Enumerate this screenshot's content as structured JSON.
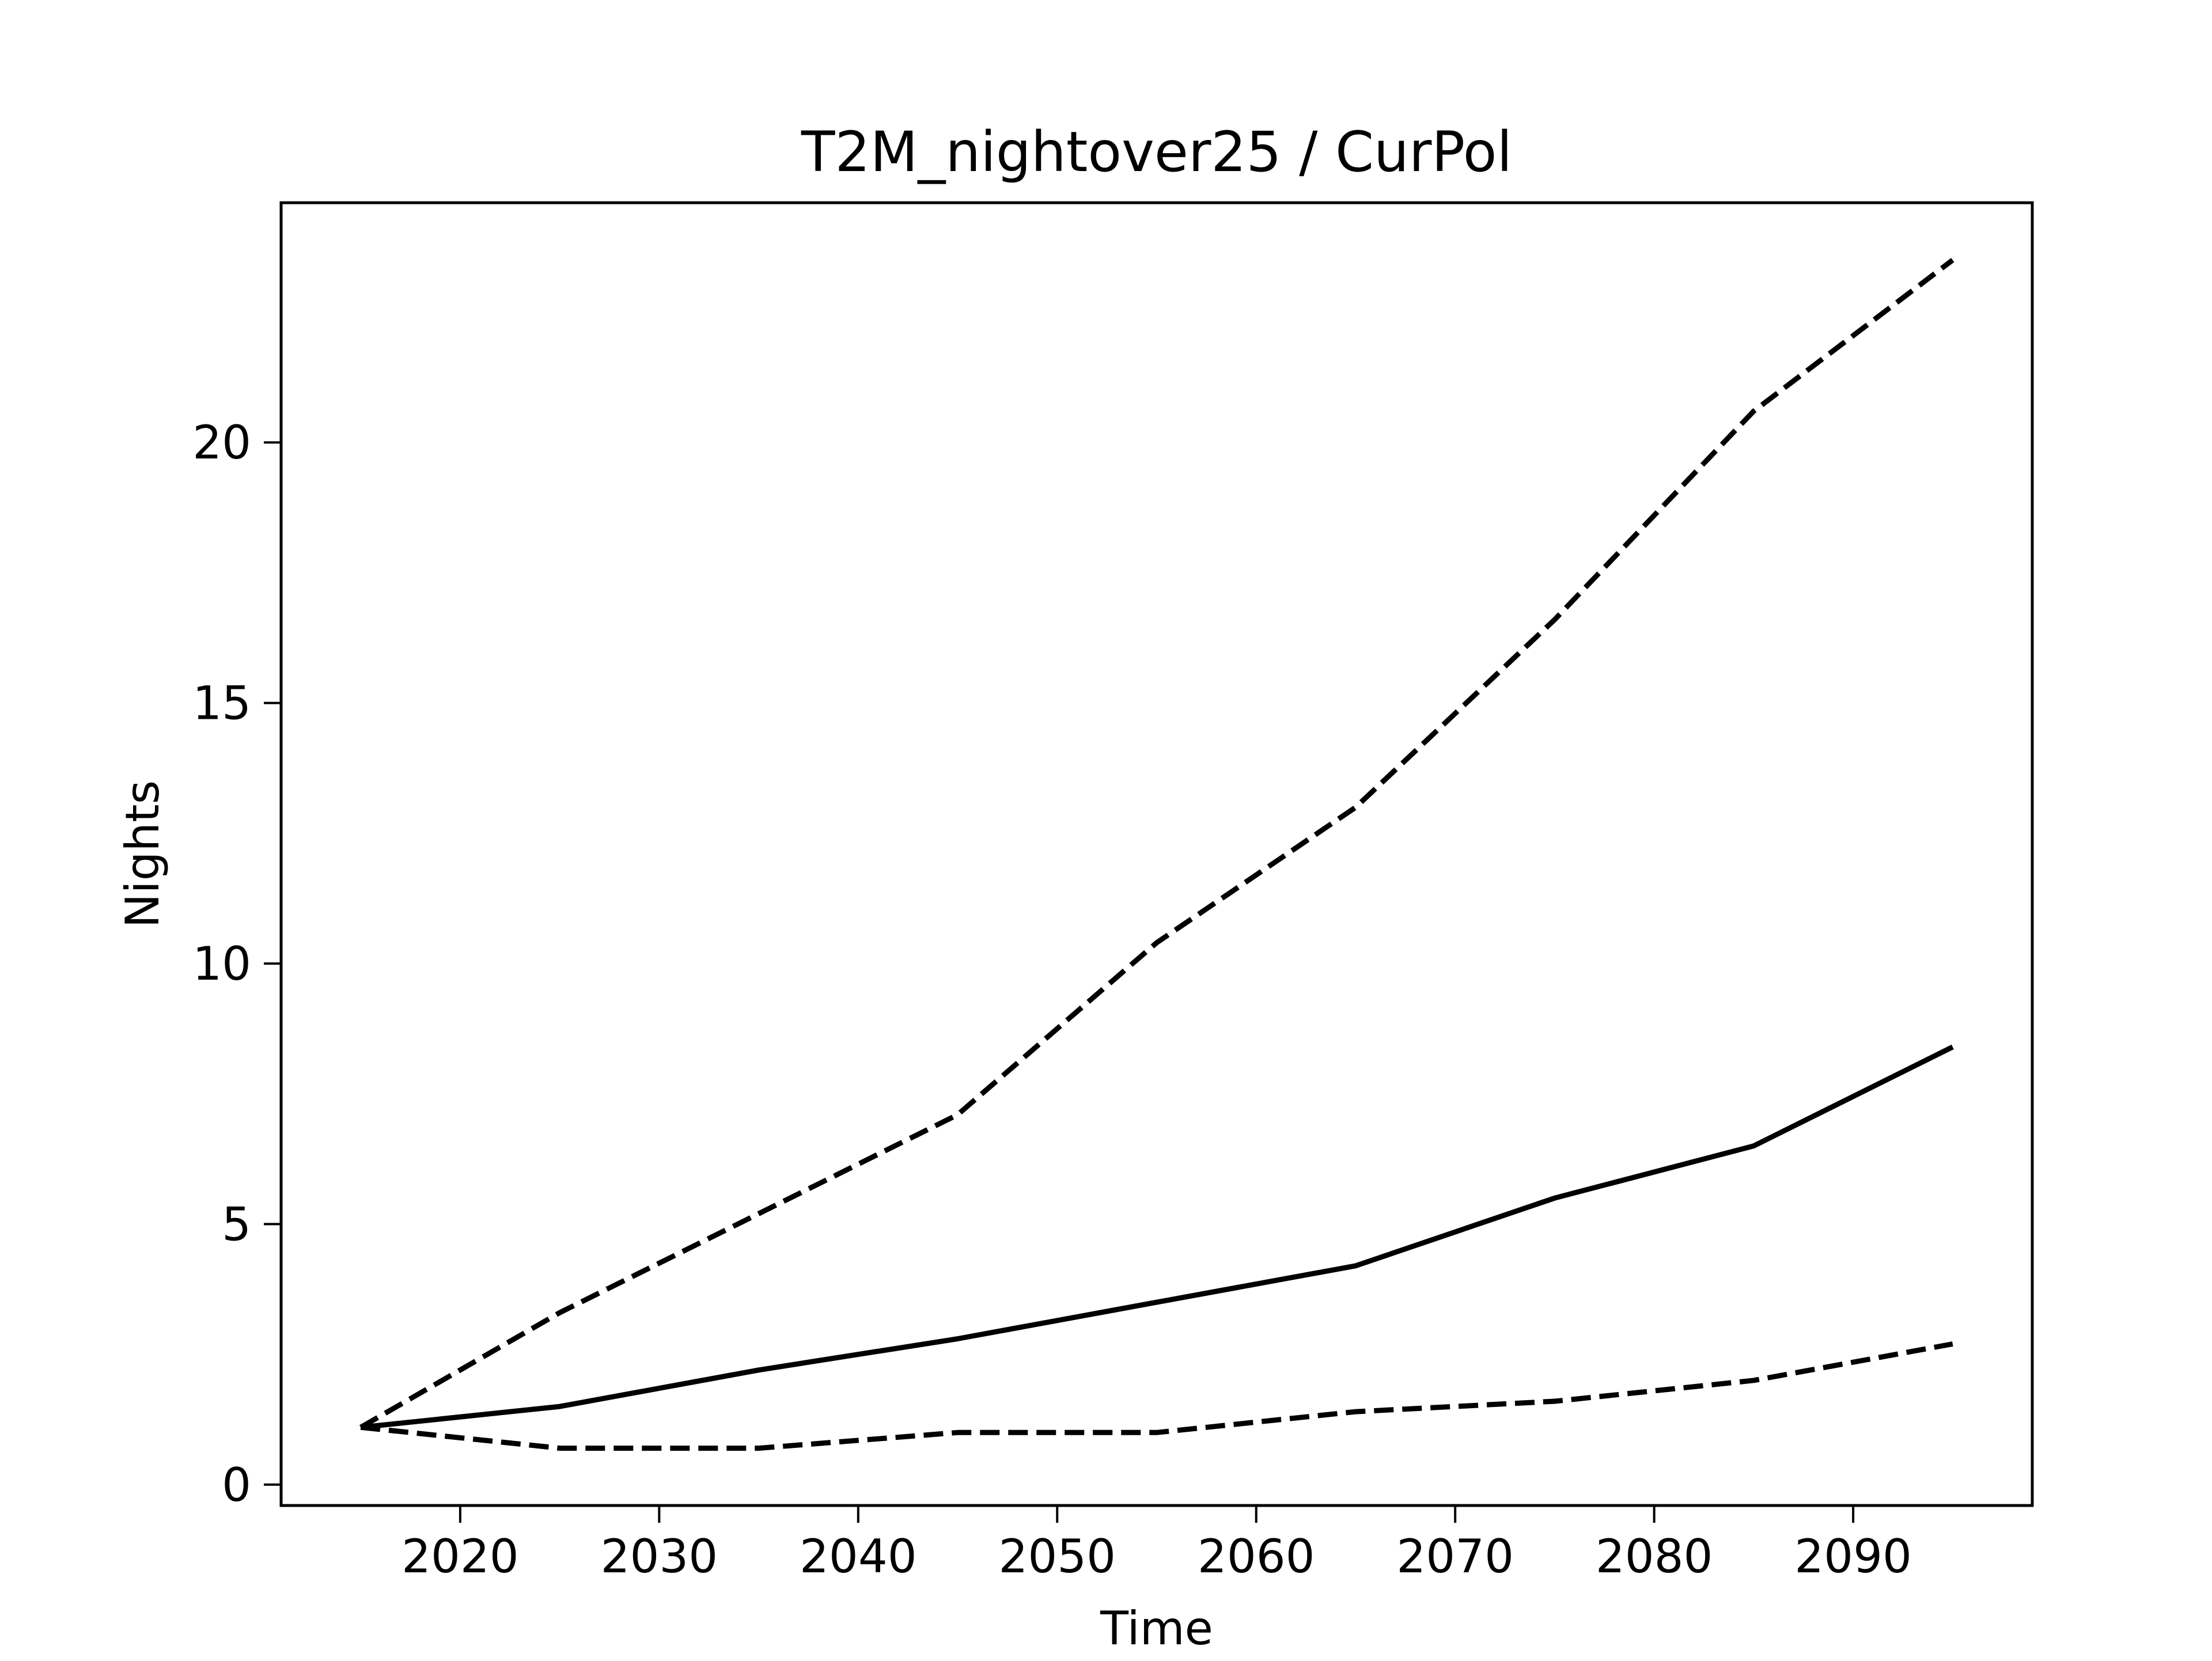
{
  "chart_data": {
    "type": "line",
    "title": "T2M_nightover25 / CurPol",
    "xlabel": "Time",
    "ylabel": "Nights",
    "x": [
      2015,
      2025,
      2035,
      2045,
      2055,
      2065,
      2075,
      2085,
      2095
    ],
    "xlim": [
      2011,
      2099
    ],
    "ylim": [
      -0.4,
      24.6
    ],
    "xticks": [
      2020,
      2030,
      2040,
      2050,
      2060,
      2070,
      2080,
      2090
    ],
    "yticks": [
      0,
      5,
      10,
      15,
      20
    ],
    "grid": false,
    "series": [
      {
        "values": [
          1.1,
          3.3,
          5.2,
          7.1,
          10.4,
          13.0,
          16.6,
          20.6,
          23.5
        ],
        "color": "#000000",
        "linestyle": "dashed"
      },
      {
        "values": [
          1.1,
          1.5,
          2.2,
          2.8,
          3.5,
          4.2,
          5.5,
          6.5,
          8.4
        ],
        "color": "#000000",
        "linestyle": "solid"
      },
      {
        "values": [
          1.1,
          0.7,
          0.7,
          1.0,
          1.0,
          1.4,
          1.6,
          2.0,
          2.7
        ],
        "color": "#000000",
        "linestyle": "dashed"
      }
    ]
  }
}
